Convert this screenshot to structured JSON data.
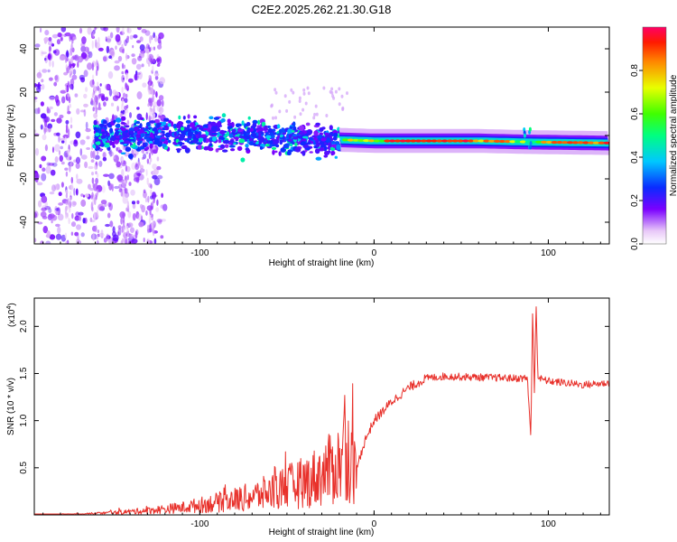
{
  "title": "C2E2.2025.262.21.30.G18",
  "chart_data": [
    {
      "type": "heatmap",
      "title": "C2E2.2025.262.21.30.G18",
      "xlabel": "Height of straight line (km)",
      "ylabel": "Frequency (Hz)",
      "xlim": [
        -195,
        135
      ],
      "ylim": [
        -50,
        50
      ],
      "x_ticks": [
        -100,
        0,
        100
      ],
      "x_tick_labels": [
        "-100",
        "0",
        "100"
      ],
      "y_ticks": [
        -40,
        -20,
        0,
        20,
        40
      ],
      "y_tick_labels": [
        "-40",
        "-20",
        "0",
        "20",
        "40"
      ],
      "ridge": [
        {
          "x": -160,
          "f": 0
        },
        {
          "x": -100,
          "f": 0.5
        },
        {
          "x": -50,
          "f": -1
        },
        {
          "x": -20,
          "f": -2
        },
        {
          "x": 0,
          "f": -2.5
        },
        {
          "x": 60,
          "f": -2.5
        },
        {
          "x": 88,
          "f": -3
        },
        {
          "x": 135,
          "f": -3.5
        }
      ],
      "colorbar": {
        "label": "Normalized spectral amplitude",
        "range": [
          0,
          1
        ],
        "ticks": [
          0.0,
          0.2,
          0.4,
          0.6,
          0.8
        ],
        "tick_labels": [
          "0.0",
          "0.2",
          "0.4",
          "0.6",
          "0.8"
        ]
      }
    },
    {
      "type": "line",
      "xlabel": "Height of straight line (km)",
      "ylabel": "SNR (10 * v/v)",
      "exponent_label": "(x10",
      "exponent_power": "4",
      "exponent_close": ")",
      "xlim": [
        -195,
        135
      ],
      "ylim": [
        0,
        2.3
      ],
      "x_ticks": [
        -100,
        0,
        100
      ],
      "x_tick_labels": [
        "-100",
        "0",
        "100"
      ],
      "y_ticks": [
        0.5,
        1.0,
        1.5,
        2.0
      ],
      "y_tick_labels": [
        "0.5",
        "1.0",
        "1.5",
        "2.0"
      ],
      "line_color": "#e8302a",
      "series": [
        {
          "name": "SNR",
          "x": [
            -195,
            -170,
            -150,
            -130,
            -110,
            -90,
            -70,
            -50,
            -40,
            -30,
            -20,
            -15,
            -10,
            -5,
            0,
            10,
            20,
            30,
            40,
            60,
            80,
            88,
            90,
            91,
            92,
            93,
            94,
            100,
            110,
            120,
            135
          ],
          "y": [
            0.0,
            0.01,
            0.03,
            0.06,
            0.1,
            0.17,
            0.25,
            0.38,
            0.45,
            0.55,
            0.7,
            0.85,
            0.5,
            0.8,
            1.0,
            1.2,
            1.35,
            1.45,
            1.47,
            1.46,
            1.45,
            1.45,
            0.82,
            2.2,
            1.3,
            2.25,
            1.45,
            1.42,
            1.4,
            1.38,
            1.4
          ]
        }
      ]
    }
  ]
}
